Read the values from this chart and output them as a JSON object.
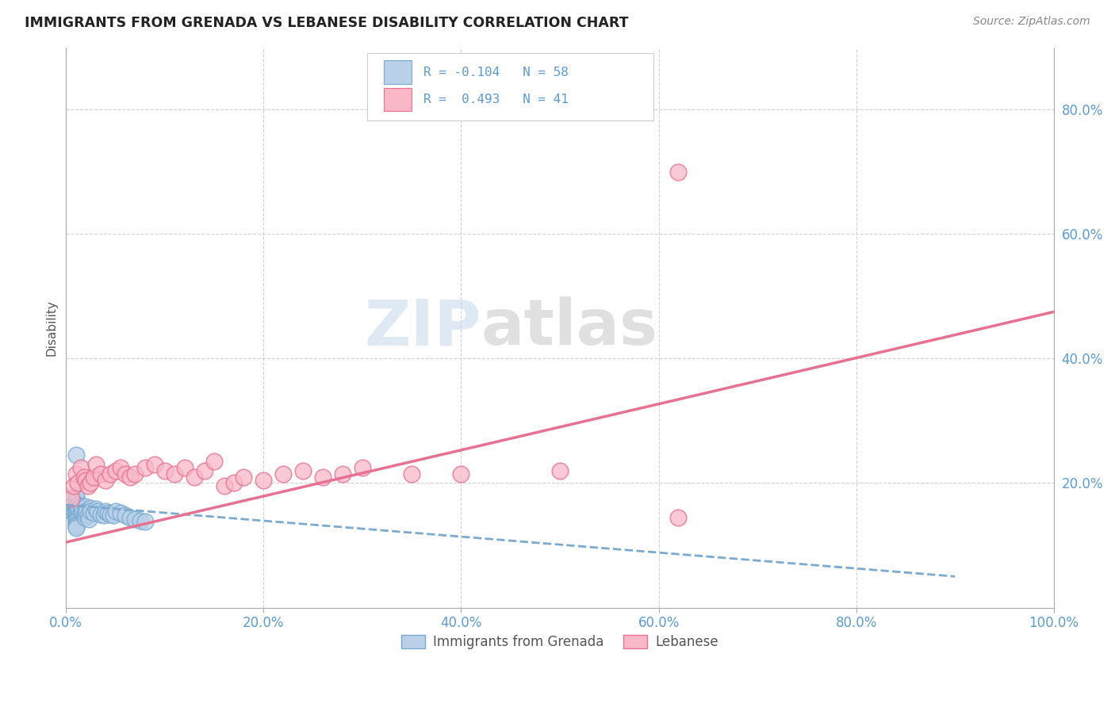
{
  "title": "IMMIGRANTS FROM GRENADA VS LEBANESE DISABILITY CORRELATION CHART",
  "source": "Source: ZipAtlas.com",
  "ylabel": "Disability",
  "watermark_zip": "ZIP",
  "watermark_atlas": "atlas",
  "legend_r1": "R = -0.104",
  "legend_n1": "N = 58",
  "legend_r2": "R =  0.493",
  "legend_n2": "N = 41",
  "color_blue_fill": "#b8d0e8",
  "color_blue_edge": "#7aaad0",
  "color_pink_fill": "#f8b8c8",
  "color_pink_edge": "#e87090",
  "color_blue_line": "#7aaad0",
  "color_pink_line": "#e87090",
  "tick_color": "#5b9bd5",
  "xlim": [
    0.0,
    1.0
  ],
  "ylim": [
    0.0,
    0.9
  ],
  "xticks": [
    0.0,
    0.2,
    0.4,
    0.6,
    0.8,
    1.0
  ],
  "yticks": [
    0.0,
    0.2,
    0.4,
    0.6,
    0.8
  ],
  "xticklabels": [
    "0.0%",
    "20.0%",
    "40.0%",
    "60.0%",
    "80.0%",
    "100.0%"
  ],
  "yticklabels_right": [
    "",
    "20.0%",
    "40.0%",
    "60.0%",
    "80.0%"
  ],
  "grid_color": "#cccccc",
  "bg": "#ffffff",
  "blue_scatter_x": [
    0.005,
    0.006,
    0.007,
    0.008,
    0.009,
    0.01,
    0.01,
    0.01,
    0.01,
    0.01,
    0.01,
    0.01,
    0.01,
    0.01,
    0.01,
    0.01,
    0.01,
    0.01,
    0.01,
    0.01,
    0.01,
    0.01,
    0.01,
    0.01,
    0.01,
    0.012,
    0.013,
    0.015,
    0.015,
    0.016,
    0.017,
    0.018,
    0.019,
    0.02,
    0.02,
    0.02,
    0.021,
    0.022,
    0.023,
    0.025,
    0.025,
    0.028,
    0.03,
    0.032,
    0.035,
    0.038,
    0.04,
    0.042,
    0.045,
    0.048,
    0.05,
    0.055,
    0.06,
    0.065,
    0.07,
    0.075,
    0.08,
    0.01
  ],
  "blue_scatter_y": [
    0.155,
    0.16,
    0.165,
    0.155,
    0.16,
    0.155,
    0.158,
    0.162,
    0.165,
    0.168,
    0.17,
    0.172,
    0.155,
    0.152,
    0.148,
    0.145,
    0.142,
    0.14,
    0.138,
    0.135,
    0.132,
    0.13,
    0.128,
    0.178,
    0.18,
    0.165,
    0.16,
    0.155,
    0.162,
    0.158,
    0.152,
    0.148,
    0.145,
    0.162,
    0.155,
    0.15,
    0.155,
    0.148,
    0.142,
    0.16,
    0.155,
    0.152,
    0.158,
    0.155,
    0.15,
    0.148,
    0.155,
    0.152,
    0.15,
    0.148,
    0.155,
    0.152,
    0.148,
    0.145,
    0.142,
    0.14,
    0.138,
    0.245
  ],
  "pink_scatter_x": [
    0.005,
    0.008,
    0.01,
    0.012,
    0.015,
    0.018,
    0.02,
    0.022,
    0.025,
    0.028,
    0.03,
    0.035,
    0.04,
    0.045,
    0.05,
    0.055,
    0.06,
    0.065,
    0.07,
    0.08,
    0.09,
    0.1,
    0.11,
    0.12,
    0.13,
    0.14,
    0.15,
    0.16,
    0.17,
    0.18,
    0.2,
    0.22,
    0.24,
    0.26,
    0.28,
    0.3,
    0.35,
    0.4,
    0.5,
    0.62,
    0.62
  ],
  "pink_scatter_y": [
    0.175,
    0.195,
    0.215,
    0.2,
    0.225,
    0.21,
    0.205,
    0.195,
    0.2,
    0.21,
    0.23,
    0.215,
    0.205,
    0.215,
    0.22,
    0.225,
    0.215,
    0.21,
    0.215,
    0.225,
    0.23,
    0.22,
    0.215,
    0.225,
    0.21,
    0.22,
    0.235,
    0.195,
    0.2,
    0.21,
    0.205,
    0.215,
    0.22,
    0.21,
    0.215,
    0.225,
    0.215,
    0.215,
    0.22,
    0.145,
    0.7
  ],
  "pink_line_x": [
    0.0,
    1.0
  ],
  "pink_line_y": [
    0.105,
    0.475
  ],
  "blue_line_x": [
    0.0,
    0.9
  ],
  "blue_line_y": [
    0.165,
    0.05
  ]
}
